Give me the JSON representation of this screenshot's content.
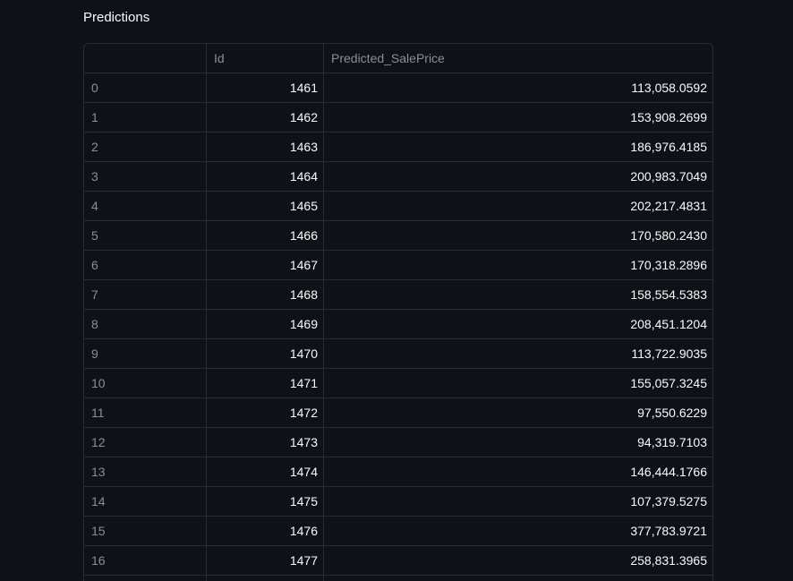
{
  "title": "Predictions",
  "table": {
    "columns": [
      "",
      "Id",
      "Predicted_SalePrice"
    ],
    "rows": [
      {
        "index": "0",
        "id": "1461",
        "price": "113,058.0592"
      },
      {
        "index": "1",
        "id": "1462",
        "price": "153,908.2699"
      },
      {
        "index": "2",
        "id": "1463",
        "price": "186,976.4185"
      },
      {
        "index": "3",
        "id": "1464",
        "price": "200,983.7049"
      },
      {
        "index": "4",
        "id": "1465",
        "price": "202,217.4831"
      },
      {
        "index": "5",
        "id": "1466",
        "price": "170,580.2430"
      },
      {
        "index": "6",
        "id": "1467",
        "price": "170,318.2896"
      },
      {
        "index": "7",
        "id": "1468",
        "price": "158,554.5383"
      },
      {
        "index": "8",
        "id": "1469",
        "price": "208,451.1204"
      },
      {
        "index": "9",
        "id": "1470",
        "price": "113,722.9035"
      },
      {
        "index": "10",
        "id": "1471",
        "price": "155,057.3245"
      },
      {
        "index": "11",
        "id": "1472",
        "price": "97,550.6229"
      },
      {
        "index": "12",
        "id": "1473",
        "price": "94,319.7103"
      },
      {
        "index": "13",
        "id": "1474",
        "price": "146,444.1766"
      },
      {
        "index": "14",
        "id": "1475",
        "price": "107,379.5275"
      },
      {
        "index": "15",
        "id": "1476",
        "price": "377,783.9721"
      },
      {
        "index": "16",
        "id": "1477",
        "price": "258,831.3965"
      }
    ]
  }
}
